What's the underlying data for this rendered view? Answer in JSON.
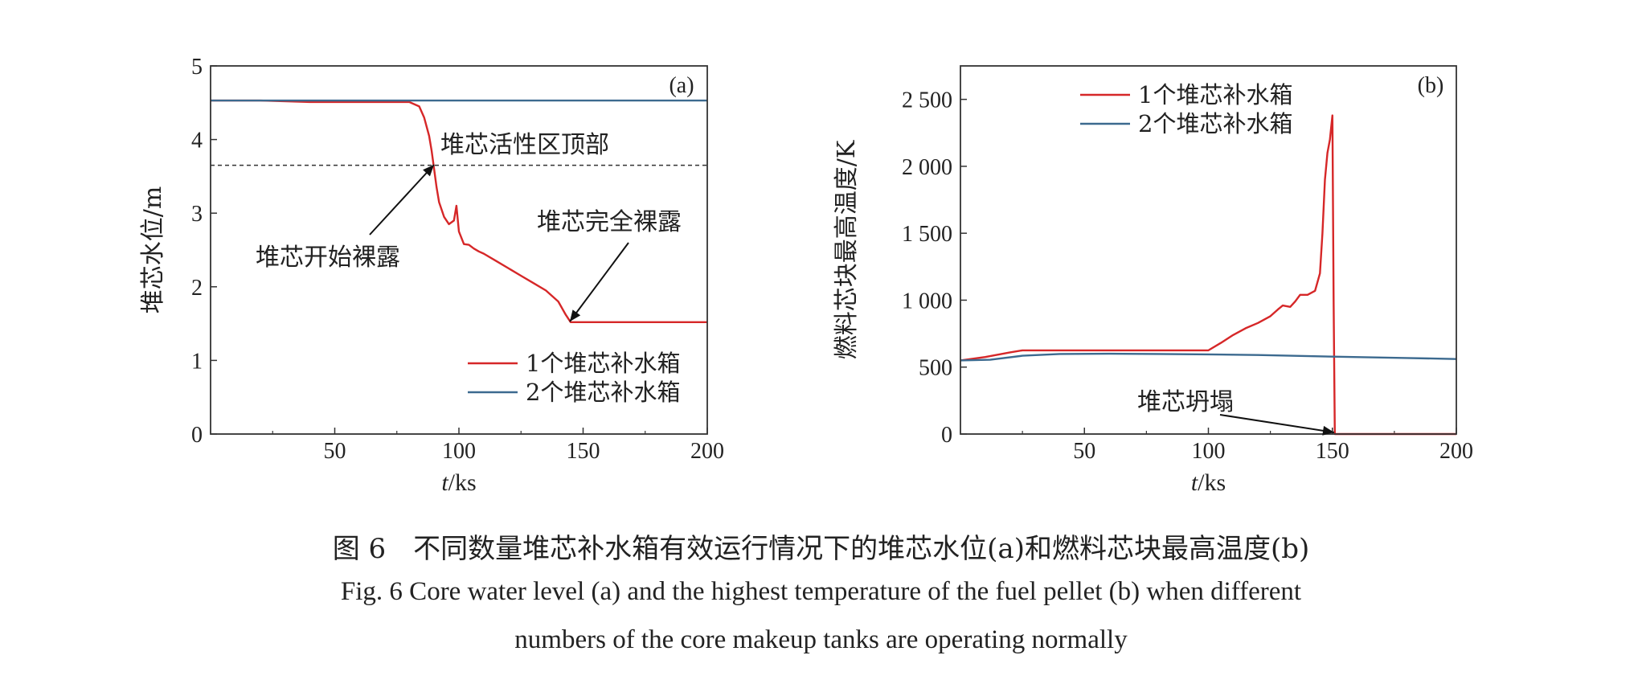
{
  "chart_data": [
    {
      "type": "line",
      "panel_label": "(a)",
      "xlabel_italic": "t",
      "xlabel_unit": "/ks",
      "ylabel": "堆芯水位/m",
      "xlim": [
        0,
        200
      ],
      "ylim": [
        0,
        5
      ],
      "x_ticks": [
        "50",
        "100",
        "150",
        "200"
      ],
      "y_ticks": [
        "0",
        "1",
        "2",
        "3",
        "4",
        "5"
      ],
      "grid": false,
      "legend_position": "bottom-right",
      "reference_line": {
        "y": 3.65,
        "label": "堆芯活性区顶部",
        "style": "dashed"
      },
      "annotations": [
        {
          "text": "堆芯开始裸露",
          "x": 90,
          "y": 3.65
        },
        {
          "text": "堆芯完全裸露",
          "x": 145,
          "y": 1.5
        }
      ],
      "series": [
        {
          "name": "1个堆芯补水箱",
          "color": "#d62728",
          "x": [
            0,
            20,
            40,
            60,
            80,
            84,
            86,
            88,
            89,
            90,
            91,
            92,
            94,
            96,
            98,
            99,
            100,
            102,
            104,
            106,
            108,
            110,
            115,
            120,
            125,
            130,
            135,
            140,
            143,
            145,
            150,
            200
          ],
          "y": [
            4.53,
            4.53,
            4.51,
            4.51,
            4.51,
            4.45,
            4.3,
            4.05,
            3.85,
            3.6,
            3.35,
            3.15,
            2.95,
            2.85,
            2.9,
            3.1,
            2.75,
            2.58,
            2.57,
            2.52,
            2.48,
            2.45,
            2.35,
            2.25,
            2.15,
            2.05,
            1.95,
            1.8,
            1.62,
            1.52,
            1.52,
            1.52
          ]
        },
        {
          "name": "2个堆芯补水箱",
          "color": "#3c6a8f",
          "x": [
            0,
            200
          ],
          "y": [
            4.53,
            4.53
          ]
        }
      ]
    },
    {
      "type": "line",
      "panel_label": "(b)",
      "xlabel_italic": "t",
      "xlabel_unit": "/ks",
      "ylabel": "燃料芯块最高温度/K",
      "xlim": [
        0,
        200
      ],
      "ylim": [
        0,
        2750
      ],
      "x_ticks": [
        "50",
        "100",
        "150",
        "200"
      ],
      "y_ticks": [
        "0",
        "500",
        "1 000",
        "1 500",
        "2 000",
        "2 500"
      ],
      "grid": false,
      "legend_position": "top-left",
      "annotations": [
        {
          "text": "堆芯坍塌",
          "x": 150,
          "y": 0
        }
      ],
      "series": [
        {
          "name": "1个堆芯补水箱",
          "color": "#d62728",
          "x": [
            0,
            10,
            20,
            25,
            40,
            60,
            80,
            100,
            105,
            110,
            115,
            120,
            125,
            128,
            130,
            133,
            135,
            137,
            140,
            143,
            145,
            146,
            147,
            148,
            149,
            150,
            150.5,
            151,
            160,
            200
          ],
          "y": [
            550,
            575,
            610,
            625,
            625,
            625,
            625,
            625,
            680,
            740,
            790,
            830,
            880,
            930,
            960,
            950,
            990,
            1040,
            1040,
            1070,
            1200,
            1500,
            1900,
            2100,
            2200,
            2380,
            1000,
            0,
            0,
            0
          ]
        },
        {
          "name": "2个堆芯补水箱",
          "color": "#3c6a8f",
          "x": [
            0,
            12,
            25,
            40,
            60,
            80,
            100,
            120,
            150,
            180,
            200
          ],
          "y": [
            550,
            555,
            585,
            598,
            600,
            598,
            595,
            590,
            578,
            568,
            560
          ]
        }
      ]
    }
  ],
  "caption": {
    "cn": "图 6　不同数量堆芯补水箱有效运行情况下的堆芯水位(a)和燃料芯块最高温度(b)",
    "en_line1": "Fig. 6  Core water level (a) and the highest temperature of the fuel pellet (b) when different",
    "en_line2": "numbers of the core makeup tanks are operating normally"
  }
}
